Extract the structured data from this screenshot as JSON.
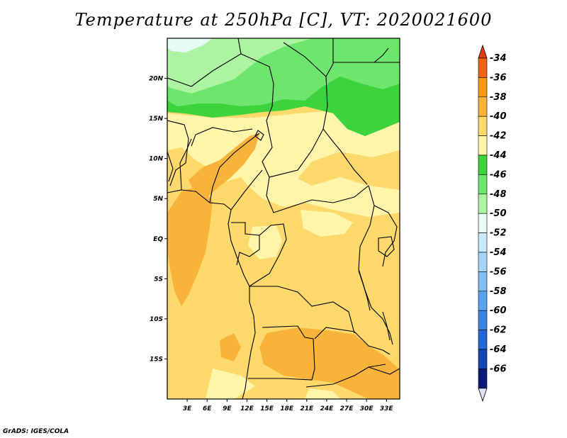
{
  "title": "Temperature at 250hPa [C], VT: 2020021600",
  "credit": "GrADS: IGES/COLA",
  "map": {
    "lon_range": [
      0,
      35
    ],
    "lat_range": [
      -20,
      25
    ],
    "lat_labels": [
      {
        "lat": 20,
        "text": "20N"
      },
      {
        "lat": 15,
        "text": "15N"
      },
      {
        "lat": 10,
        "text": "10N"
      },
      {
        "lat": 5,
        "text": "5N"
      },
      {
        "lat": 0,
        "text": "EQ"
      },
      {
        "lat": -5,
        "text": "5S"
      },
      {
        "lat": -10,
        "text": "10S"
      },
      {
        "lat": -15,
        "text": "15S"
      }
    ],
    "lon_labels": [
      {
        "lon": 3,
        "text": "3E"
      },
      {
        "lon": 6,
        "text": "6E"
      },
      {
        "lon": 9,
        "text": "9E"
      },
      {
        "lon": 12,
        "text": "12E"
      },
      {
        "lon": 15,
        "text": "15E"
      },
      {
        "lon": 18,
        "text": "18E"
      },
      {
        "lon": 21,
        "text": "21E"
      },
      {
        "lon": 24,
        "text": "24E"
      },
      {
        "lon": 27,
        "text": "27E"
      },
      {
        "lon": 30,
        "text": "30E"
      },
      {
        "lon": 33,
        "text": "33E"
      }
    ]
  },
  "colorbar": {
    "top_color": "#e43c14",
    "bottom_color": "#e0e0f8",
    "entries": [
      {
        "label": "-34",
        "color": "#f06414"
      },
      {
        "label": "-36",
        "color": "#f59a0a"
      },
      {
        "label": "-38",
        "color": "#f8b43a"
      },
      {
        "label": "-40",
        "color": "#fcd96a"
      },
      {
        "label": "-42",
        "color": "#fef4aa"
      },
      {
        "label": "-44",
        "color": "#3cd33c"
      },
      {
        "label": "-46",
        "color": "#6ee66e"
      },
      {
        "label": "-48",
        "color": "#acf4a2"
      },
      {
        "label": "-50",
        "color": "#e6fbf4"
      },
      {
        "label": "-52",
        "color": "#c8e8fb"
      },
      {
        "label": "-54",
        "color": "#a6d4f7"
      },
      {
        "label": "-56",
        "color": "#82bef2"
      },
      {
        "label": "-58",
        "color": "#5aa3ec"
      },
      {
        "label": "-60",
        "color": "#3b84e2"
      },
      {
        "label": "-62",
        "color": "#2468d8"
      },
      {
        "label": "-64",
        "color": "#1446b4"
      },
      {
        "label": "-66",
        "color": "#0a1a78"
      }
    ]
  },
  "temperature_fields": [
    {
      "name": "band-42",
      "color": "#fef4aa"
    },
    {
      "name": "band-38",
      "color": "#f8b43a"
    },
    {
      "name": "band-44",
      "color": "#3cd33c"
    },
    {
      "name": "band-46",
      "color": "#6ee66e"
    },
    {
      "name": "band-48",
      "color": "#acf4a2"
    },
    {
      "name": "band-50",
      "color": "#e6fbf4"
    }
  ]
}
